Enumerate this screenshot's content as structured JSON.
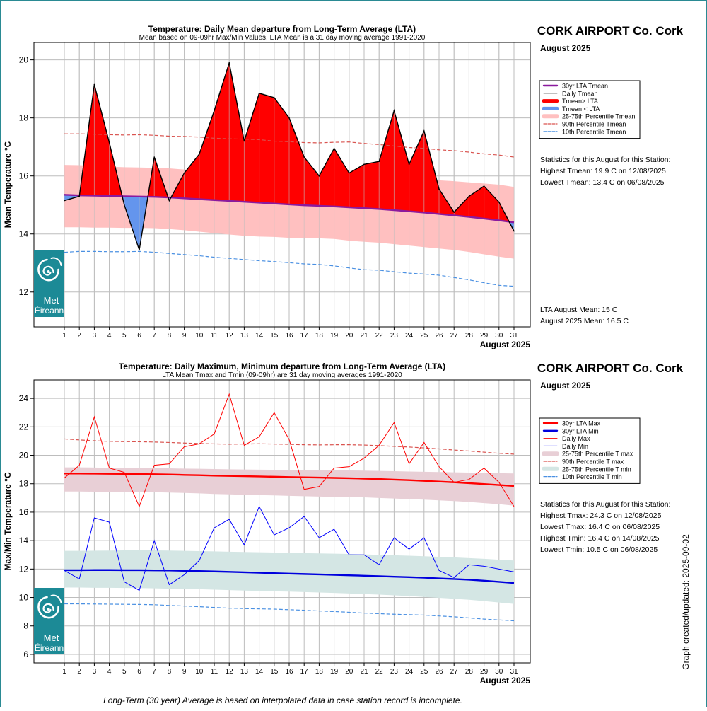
{
  "colors": {
    "frame": "#2a8a93",
    "grid": "#bdbdbd",
    "above_fill": "#ff0000",
    "below_fill": "#6495ed",
    "lta_mean": "#8b1a9e",
    "band_mean": "#ffc0c0",
    "p90": "#d9534f",
    "p10": "#4a90e2",
    "tmax_line": "#ff0000",
    "tmin_line": "#0000ff",
    "lta_max": "#ff0000",
    "lta_min": "#0000dd",
    "band_max": "#e8cfd6",
    "band_min": "#d4e6e4",
    "logo_bg": "#1c8a96"
  },
  "logo": {
    "text_line1": "Met",
    "text_line2": "Éireann"
  },
  "footnote": "Long-Term (30 year) Average is based on interpolated data in case station record is incomplete.",
  "updated_label": "Graph created/updated:  2025-09-02",
  "chart_data": [
    {
      "type": "area",
      "title": "Temperature: Daily Mean departure from Long-Term Average (LTA)",
      "subtitle": "Mean based on 09-09hr Max/Min Values, LTA Mean is a 31 day moving average 1991-2020",
      "station": "CORK AIRPORT Co. Cork",
      "period": "August 2025",
      "ylabel": "Mean Temperature °C",
      "xlabel": "August 2025",
      "ylim": [
        10.8,
        20.6
      ],
      "yticks": [
        12,
        14,
        16,
        18,
        20
      ],
      "x": [
        1,
        2,
        3,
        4,
        5,
        6,
        7,
        8,
        9,
        10,
        11,
        12,
        13,
        14,
        15,
        16,
        17,
        18,
        19,
        20,
        21,
        22,
        23,
        24,
        25,
        26,
        27,
        28,
        29,
        30,
        31
      ],
      "grid": true,
      "legend_position": "right",
      "legend": [
        "30yr LTA Tmean",
        "Daily Tmean",
        "Tmean> LTA",
        "Tmean < LTA",
        "25-75th Percentile Tmean",
        "90th Percentile Tmean",
        "10th Percentile Tmean"
      ],
      "series": [
        {
          "name": "Daily Tmean",
          "values": [
            15.15,
            15.3,
            19.15,
            17.15,
            15.0,
            13.45,
            16.65,
            15.15,
            16.1,
            16.75,
            18.25,
            19.9,
            17.2,
            18.85,
            18.7,
            18.0,
            16.65,
            16.0,
            16.95,
            16.1,
            16.4,
            16.5,
            18.25,
            16.4,
            17.55,
            15.55,
            14.75,
            15.3,
            15.65,
            15.1,
            14.1
          ]
        },
        {
          "name": "30yr LTA Tmean",
          "values": [
            15.35,
            15.33,
            15.32,
            15.31,
            15.3,
            15.29,
            15.28,
            15.26,
            15.23,
            15.2,
            15.17,
            15.14,
            15.11,
            15.08,
            15.05,
            15.02,
            14.99,
            14.97,
            14.95,
            14.92,
            14.89,
            14.86,
            14.82,
            14.78,
            14.74,
            14.69,
            14.64,
            14.59,
            14.53,
            14.47,
            14.4
          ]
        },
        {
          "name": "25th Percentile Tmean",
          "values": [
            14.23,
            14.23,
            14.22,
            14.22,
            14.21,
            14.21,
            14.2,
            14.17,
            14.13,
            14.08,
            14.03,
            13.98,
            13.94,
            13.91,
            13.9,
            13.87,
            13.85,
            13.85,
            13.83,
            13.77,
            13.73,
            13.7,
            13.65,
            13.6,
            13.55,
            13.5,
            13.45,
            13.38,
            13.3,
            13.22,
            13.15
          ]
        },
        {
          "name": "75th Percentile Tmean",
          "values": [
            16.38,
            16.37,
            16.35,
            16.32,
            16.3,
            16.29,
            16.28,
            16.26,
            16.22,
            16.18,
            16.14,
            16.12,
            16.1,
            16.08,
            16.05,
            16.03,
            16.0,
            15.99,
            15.99,
            15.98,
            15.98,
            15.97,
            15.95,
            15.92,
            15.89,
            15.85,
            15.82,
            15.78,
            15.74,
            15.7,
            15.62
          ]
        },
        {
          "name": "90th Percentile Tmean",
          "values": [
            17.45,
            17.45,
            17.44,
            17.42,
            17.41,
            17.42,
            17.4,
            17.37,
            17.36,
            17.34,
            17.3,
            17.28,
            17.27,
            17.25,
            17.2,
            17.18,
            17.15,
            17.14,
            17.16,
            17.17,
            17.12,
            17.08,
            17.03,
            16.98,
            16.95,
            16.9,
            16.87,
            16.82,
            16.76,
            16.72,
            16.65
          ]
        },
        {
          "name": "10th Percentile Tmean",
          "values": [
            13.37,
            13.4,
            13.4,
            13.39,
            13.39,
            13.4,
            13.37,
            13.33,
            13.29,
            13.25,
            13.2,
            13.16,
            13.12,
            13.08,
            13.05,
            13.01,
            12.97,
            12.95,
            12.9,
            12.83,
            12.77,
            12.75,
            12.7,
            12.65,
            12.62,
            12.58,
            12.5,
            12.42,
            12.32,
            12.23,
            12.2
          ]
        }
      ],
      "statistics": {
        "heading": "Statistics for this August for this Station:",
        "lines": [
          "Highest Tmean: 19.9 C on 12/08/2025",
          "Lowest Tmean: 13.4 C on 06/08/2025"
        ]
      },
      "means": [
        "LTA August Mean: 15 C",
        "August 2025 Mean: 16.5 C"
      ]
    },
    {
      "type": "line",
      "title": "Temperature: Daily Maximum, Minimum departure from Long-Term Average (LTA)",
      "subtitle": "LTA Mean Tmax and Tmin (09-09hr) are 31 day moving averages 1991-2020",
      "station": "CORK AIRPORT Co. Cork",
      "period": "August 2025",
      "ylabel": "Max/Min Temperature °C",
      "xlabel": "August 2025",
      "ylim": [
        5.4,
        25.3
      ],
      "yticks": [
        6,
        8,
        10,
        12,
        14,
        16,
        18,
        20,
        22,
        24
      ],
      "x": [
        1,
        2,
        3,
        4,
        5,
        6,
        7,
        8,
        9,
        10,
        11,
        12,
        13,
        14,
        15,
        16,
        17,
        18,
        19,
        20,
        21,
        22,
        23,
        24,
        25,
        26,
        27,
        28,
        29,
        30,
        31
      ],
      "grid": true,
      "legend_position": "right",
      "legend": [
        "30yr LTA Max",
        "30yr LTA Min",
        "Daily Max",
        "Daily Min",
        "25-75th Percentile T max",
        "90th Percentile T max",
        "25-75th Percentile T min",
        "10th Percentile T min"
      ],
      "series": [
        {
          "name": "Daily Max",
          "values": [
            18.4,
            19.3,
            22.7,
            19.1,
            18.8,
            16.4,
            19.3,
            19.4,
            20.6,
            20.8,
            21.5,
            24.3,
            20.7,
            21.3,
            23.0,
            21.1,
            17.6,
            17.8,
            19.1,
            19.2,
            19.8,
            20.7,
            22.3,
            19.4,
            20.9,
            19.2,
            18.1,
            18.3,
            19.1,
            18.1,
            16.4
          ]
        },
        {
          "name": "Daily Min",
          "values": [
            11.9,
            11.3,
            15.6,
            15.3,
            11.1,
            10.5,
            14.0,
            10.9,
            11.6,
            12.6,
            14.9,
            15.5,
            13.7,
            16.4,
            14.4,
            14.9,
            15.7,
            14.2,
            14.8,
            13.0,
            13.0,
            12.3,
            14.2,
            13.4,
            14.2,
            11.9,
            11.4,
            12.3,
            12.2,
            12.0,
            11.8
          ]
        },
        {
          "name": "30yr LTA Max",
          "values": [
            18.72,
            18.72,
            18.71,
            18.7,
            18.69,
            18.68,
            18.67,
            18.65,
            18.62,
            18.6,
            18.57,
            18.55,
            18.53,
            18.51,
            18.49,
            18.47,
            18.45,
            18.43,
            18.41,
            18.39,
            18.36,
            18.33,
            18.29,
            18.25,
            18.2,
            18.15,
            18.1,
            18.04,
            17.98,
            17.91,
            17.84
          ]
        },
        {
          "name": "30yr LTA Min",
          "values": [
            11.92,
            11.92,
            11.93,
            11.93,
            11.92,
            11.92,
            11.91,
            11.9,
            11.88,
            11.86,
            11.83,
            11.8,
            11.77,
            11.74,
            11.71,
            11.68,
            11.65,
            11.62,
            11.59,
            11.56,
            11.53,
            11.5,
            11.46,
            11.43,
            11.39,
            11.34,
            11.3,
            11.25,
            11.18,
            11.1,
            11.02
          ]
        },
        {
          "name": "25th Percentile T max",
          "values": [
            17.45,
            17.45,
            17.44,
            17.44,
            17.43,
            17.42,
            17.4,
            17.38,
            17.35,
            17.32,
            17.28,
            17.25,
            17.22,
            17.2,
            17.18,
            17.15,
            17.12,
            17.1,
            17.08,
            17.06,
            17.04,
            17.0,
            16.96,
            16.92,
            16.88,
            16.83,
            16.78,
            16.72,
            16.64,
            16.56,
            16.46
          ]
        },
        {
          "name": "75th Percentile T max",
          "values": [
            19.15,
            19.15,
            19.14,
            19.12,
            19.11,
            19.11,
            19.1,
            19.08,
            19.06,
            19.05,
            19.03,
            19.01,
            19.0,
            18.99,
            18.98,
            18.97,
            18.96,
            18.95,
            18.94,
            18.93,
            18.92,
            18.9,
            18.88,
            18.86,
            18.84,
            18.82,
            18.8,
            18.78,
            18.76,
            18.74,
            18.72
          ]
        },
        {
          "name": "90th Percentile T max",
          "values": [
            21.15,
            21.08,
            21.02,
            20.98,
            20.96,
            20.95,
            20.93,
            20.9,
            20.86,
            20.83,
            20.8,
            20.78,
            20.79,
            20.81,
            20.79,
            20.77,
            20.74,
            20.73,
            20.74,
            20.74,
            20.72,
            20.68,
            20.63,
            20.58,
            20.52,
            20.45,
            20.37,
            20.3,
            20.22,
            20.14,
            20.08
          ]
        },
        {
          "name": "25th Percentile T min",
          "values": [
            10.7,
            10.7,
            10.68,
            10.68,
            10.67,
            10.66,
            10.64,
            10.62,
            10.6,
            10.58,
            10.55,
            10.52,
            10.49,
            10.46,
            10.43,
            10.41,
            10.38,
            10.35,
            10.32,
            10.28,
            10.24,
            10.2,
            10.15,
            10.1,
            10.04,
            9.98,
            9.91,
            9.84,
            9.75,
            9.65,
            9.55
          ]
        },
        {
          "name": "75th Percentile T min",
          "values": [
            13.28,
            13.28,
            13.29,
            13.3,
            13.31,
            13.32,
            13.31,
            13.3,
            13.28,
            13.26,
            13.24,
            13.22,
            13.2,
            13.18,
            13.16,
            13.14,
            13.12,
            13.1,
            13.08,
            13.06,
            13.03,
            13.0,
            12.97,
            12.94,
            12.9,
            12.86,
            12.82,
            12.77,
            12.72,
            12.66,
            12.6
          ]
        },
        {
          "name": "10th Percentile T min",
          "values": [
            9.55,
            9.55,
            9.54,
            9.53,
            9.52,
            9.51,
            9.49,
            9.44,
            9.4,
            9.35,
            9.3,
            9.25,
            9.22,
            9.2,
            9.18,
            9.14,
            9.1,
            9.05,
            9.01,
            8.96,
            8.9,
            8.86,
            8.82,
            8.79,
            8.76,
            8.7,
            8.64,
            8.56,
            8.48,
            8.42,
            8.36
          ]
        }
      ],
      "statistics": {
        "heading": "Statistics for this August for this Station:",
        "lines": [
          "Highest Tmax: 24.3 C on 12/08/2025",
          "Lowest Tmax: 16.4 C on 06/08/2025",
          "Highest Tmin: 16.4 C on 14/08/2025",
          "Lowest Tmin: 10.5 C on 06/08/2025"
        ]
      }
    }
  ]
}
